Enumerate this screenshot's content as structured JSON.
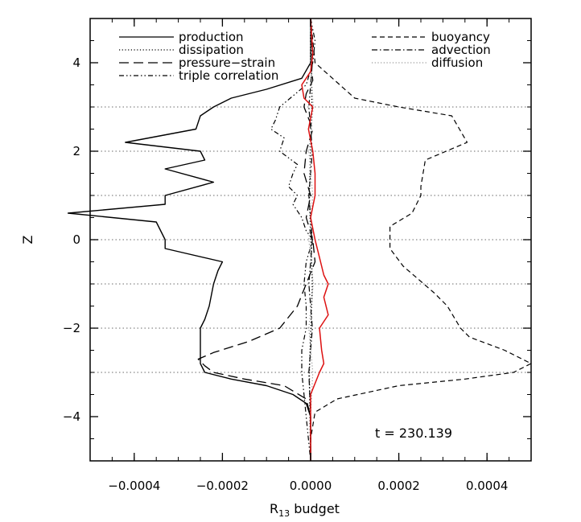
{
  "chart_data": {
    "type": "line",
    "title": "",
    "xlabel": "R",
    "xlabel_sub": "13",
    "xlabel_suffix": " budget",
    "ylabel": "Z",
    "xlim": [
      -0.0005,
      0.0005
    ],
    "ylim": [
      -5,
      5
    ],
    "x_ticks": [
      -0.0004,
      -0.0002,
      0.0,
      0.0002,
      0.0004
    ],
    "x_tick_labels": [
      "−0.0004",
      "−0.0002",
      "0.0000",
      "0.0002",
      "0.0004"
    ],
    "y_ticks": [
      -4,
      -2,
      0,
      2,
      4
    ],
    "y_tick_labels": [
      "−4",
      "−2",
      "0",
      "2",
      "4"
    ],
    "horizontal_reference_lines": [
      -3,
      -2,
      -1,
      0,
      1,
      2,
      3
    ],
    "annotation": "t  =  230.139",
    "legend_left": [
      "production",
      "dissipation",
      "pressure−strain",
      "triple correlation"
    ],
    "legend_right": [
      "buoyancy",
      "advection",
      "diffusion"
    ],
    "series": [
      {
        "name": "production",
        "style": "solid",
        "color": "#000000",
        "points": [
          [
            0.0,
            5.0
          ],
          [
            0.0,
            4.0
          ],
          [
            -2e-05,
            3.65
          ],
          [
            -0.0001,
            3.4
          ],
          [
            -0.00018,
            3.2
          ],
          [
            -0.00022,
            3.0
          ],
          [
            -0.00025,
            2.8
          ],
          [
            -0.00026,
            2.5
          ],
          [
            -0.00042,
            2.2
          ],
          [
            -0.00025,
            2.0
          ],
          [
            -0.00024,
            1.8
          ],
          [
            -0.00033,
            1.6
          ],
          [
            -0.00022,
            1.3
          ],
          [
            -0.00033,
            1.0
          ],
          [
            -0.00033,
            0.8
          ],
          [
            -0.00055,
            0.6
          ],
          [
            -0.00035,
            0.4
          ],
          [
            -0.00033,
            0.0
          ],
          [
            -0.00033,
            -0.2
          ],
          [
            -0.0002,
            -0.5
          ],
          [
            -0.00021,
            -0.7
          ],
          [
            -0.00022,
            -1.0
          ],
          [
            -0.00023,
            -1.5
          ],
          [
            -0.00024,
            -1.8
          ],
          [
            -0.00025,
            -2.0
          ],
          [
            -0.00025,
            -2.5
          ],
          [
            -0.00025,
            -2.8
          ],
          [
            -0.00024,
            -3.0
          ],
          [
            -0.00018,
            -3.15
          ],
          [
            -0.0001,
            -3.3
          ],
          [
            -4e-05,
            -3.5
          ],
          [
            -1e-05,
            -3.7
          ],
          [
            0.0,
            -4.0
          ],
          [
            0.0,
            -5.0
          ]
        ]
      },
      {
        "name": "dissipation",
        "style": "dotted",
        "color": "#000000",
        "points": [
          [
            0.0,
            5.0
          ],
          [
            3e-06,
            3.0
          ],
          [
            -3e-06,
            1.0
          ],
          [
            4e-06,
            -1.0
          ],
          [
            -3e-06,
            -3.0
          ],
          [
            0.0,
            -5.0
          ]
        ]
      },
      {
        "name": "pressure−strain",
        "style": "longdash",
        "color": "#000000",
        "points": [
          [
            0.0,
            5.0
          ],
          [
            0.0,
            4.0
          ],
          [
            5e-06,
            3.6
          ],
          [
            -1e-05,
            3.3
          ],
          [
            -1.5e-05,
            3.0
          ],
          [
            5e-06,
            2.5
          ],
          [
            -1e-05,
            2.0
          ],
          [
            -1.5e-05,
            1.5
          ],
          [
            0.0,
            1.0
          ],
          [
            -1e-05,
            0.5
          ],
          [
            5e-06,
            0.0
          ],
          [
            1e-05,
            -0.5
          ],
          [
            -1e-05,
            -1.0
          ],
          [
            -3e-05,
            -1.5
          ],
          [
            -7e-05,
            -2.0
          ],
          [
            -0.00014,
            -2.3
          ],
          [
            -0.00022,
            -2.55
          ],
          [
            -0.000255,
            -2.7
          ],
          [
            -0.00024,
            -2.85
          ],
          [
            -0.00022,
            -3.0
          ],
          [
            -0.00015,
            -3.15
          ],
          [
            -6e-05,
            -3.3
          ],
          [
            -1e-05,
            -3.6
          ],
          [
            0.0,
            -4.0
          ],
          [
            0.0,
            -5.0
          ]
        ]
      },
      {
        "name": "triple correlation",
        "style": "dashdotdot",
        "color": "#000000",
        "points": [
          [
            0.0,
            5.0
          ],
          [
            1e-05,
            4.5
          ],
          [
            5e-06,
            4.0
          ],
          [
            -1e-05,
            3.5
          ],
          [
            -7e-05,
            3.0
          ],
          [
            -8e-05,
            2.7
          ],
          [
            -9e-05,
            2.5
          ],
          [
            -6e-05,
            2.3
          ],
          [
            -7e-05,
            2.0
          ],
          [
            -3e-05,
            1.7
          ],
          [
            -4e-05,
            1.5
          ],
          [
            -5e-05,
            1.2
          ],
          [
            -3e-05,
            1.0
          ],
          [
            -4e-05,
            0.8
          ],
          [
            -2e-05,
            0.5
          ],
          [
            -1e-05,
            0.2
          ],
          [
            5e-06,
            0.0
          ],
          [
            -1e-05,
            -0.5
          ],
          [
            -1.5e-05,
            -1.0
          ],
          [
            -1e-05,
            -1.5
          ],
          [
            -1e-05,
            -2.0
          ],
          [
            -2e-05,
            -2.5
          ],
          [
            -2e-05,
            -3.0
          ],
          [
            -1.5e-05,
            -3.5
          ],
          [
            -1e-05,
            -4.0
          ],
          [
            0.0,
            -5.0
          ]
        ]
      },
      {
        "name": "buoyancy",
        "style": "dashed",
        "color": "#000000",
        "points": [
          [
            0.0,
            5.0
          ],
          [
            1e-05,
            4.0
          ],
          [
            0.0001,
            3.2
          ],
          [
            0.0002,
            3.0
          ],
          [
            0.00032,
            2.8
          ],
          [
            0.000355,
            2.2
          ],
          [
            0.00026,
            1.8
          ],
          [
            0.00025,
            1.2
          ],
          [
            0.00025,
            1.0
          ],
          [
            0.00023,
            0.6
          ],
          [
            0.00018,
            0.3
          ],
          [
            0.00018,
            -0.2
          ],
          [
            0.00021,
            -0.6
          ],
          [
            0.00028,
            -1.2
          ],
          [
            0.00031,
            -1.5
          ],
          [
            0.00034,
            -2.0
          ],
          [
            0.00036,
            -2.2
          ],
          [
            0.00044,
            -2.5
          ],
          [
            0.0005,
            -2.8
          ],
          [
            0.00046,
            -3.0
          ],
          [
            0.00035,
            -3.15
          ],
          [
            0.0002,
            -3.3
          ],
          [
            6e-05,
            -3.6
          ],
          [
            1e-05,
            -3.9
          ],
          [
            0.0,
            -4.5
          ],
          [
            0.0,
            -5.0
          ]
        ]
      },
      {
        "name": "advection",
        "style": "dashdot",
        "color": "#000000",
        "points": [
          [
            0.0,
            5.0
          ],
          [
            4e-06,
            4.0
          ],
          [
            -4e-06,
            3.0
          ],
          [
            4e-06,
            2.0
          ],
          [
            -4e-06,
            1.0
          ],
          [
            4e-06,
            0.0
          ],
          [
            -4e-06,
            -1.0
          ],
          [
            4e-06,
            -2.0
          ],
          [
            -4e-06,
            -3.0
          ],
          [
            0.0,
            -4.0
          ],
          [
            0.0,
            -5.0
          ]
        ]
      },
      {
        "name": "diffusion",
        "style": "dotted-gray",
        "color": "#999999",
        "points": [
          [
            0.0,
            5.0
          ],
          [
            0.0,
            4.0
          ],
          [
            6e-06,
            3.0
          ],
          [
            -4e-06,
            2.0
          ],
          [
            5e-06,
            1.0
          ],
          [
            -4e-06,
            0.0
          ],
          [
            6e-06,
            -1.0
          ],
          [
            -4e-06,
            -2.0
          ],
          [
            5e-06,
            -3.0
          ],
          [
            0.0,
            -4.0
          ],
          [
            0.0,
            -5.0
          ]
        ]
      },
      {
        "name": "",
        "style": "solid",
        "color": "#dd1111",
        "points": [
          [
            0.0,
            5.0
          ],
          [
            5e-06,
            4.2
          ],
          [
            0.0,
            3.8
          ],
          [
            -2e-05,
            3.5
          ],
          [
            -1.5e-05,
            3.2
          ],
          [
            5e-06,
            3.0
          ],
          [
            -5e-06,
            2.5
          ],
          [
            5e-06,
            2.0
          ],
          [
            1e-05,
            1.5
          ],
          [
            1e-05,
            1.0
          ],
          [
            0.0,
            0.5
          ],
          [
            1e-05,
            0.0
          ],
          [
            2e-05,
            -0.4
          ],
          [
            3e-05,
            -0.8
          ],
          [
            4e-05,
            -1.0
          ],
          [
            3e-05,
            -1.3
          ],
          [
            4e-05,
            -1.7
          ],
          [
            2e-05,
            -2.0
          ],
          [
            2.5e-05,
            -2.5
          ],
          [
            3e-05,
            -2.8
          ],
          [
            2e-05,
            -3.0
          ],
          [
            0.0,
            -3.5
          ],
          [
            0.0,
            -4.0
          ],
          [
            0.0,
            -5.0
          ]
        ]
      }
    ]
  }
}
